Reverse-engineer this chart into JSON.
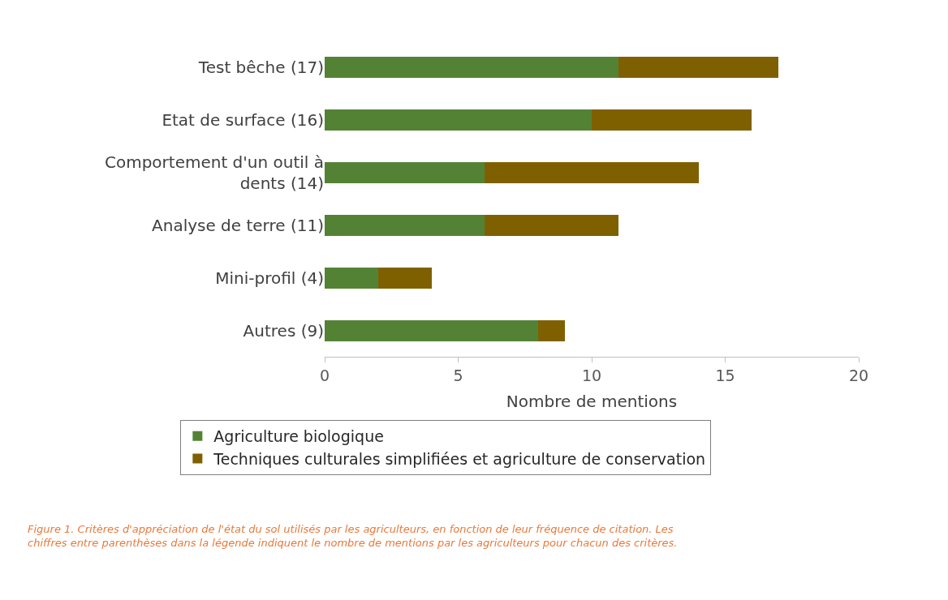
{
  "chart_data": {
    "type": "bar",
    "orientation": "horizontal",
    "stacked": true,
    "categories": [
      "Test bêche (17)",
      "Etat de surface (16)",
      "Comportement d'un outil à dents (14)",
      "Analyse de terre (11)",
      "Mini-profil (4)",
      "Autres (9)"
    ],
    "series": [
      {
        "name": "Agriculture biologique",
        "color": "#548235",
        "values": [
          11,
          10,
          6,
          6,
          2,
          8
        ]
      },
      {
        "name": "Techniques culturales simplifiées et agriculture de conservation",
        "color": "#7f6000",
        "values": [
          6,
          6,
          8,
          5,
          2,
          1
        ]
      }
    ],
    "xlabel": "Nombre de mentions",
    "xlim": [
      0,
      20
    ],
    "xticks": [
      0,
      5,
      10,
      15,
      20
    ],
    "legend": "bottom",
    "annotations": [
      "Figure 1. Critères d'appréciation de l'état du sol utilisés par les agriculteurs, en fonction de leur fréquence de citation. Les chiffres entre parenthèses dans la légende indiquent le nombre de mentions par les agriculteurs pour chacun des critères."
    ]
  }
}
